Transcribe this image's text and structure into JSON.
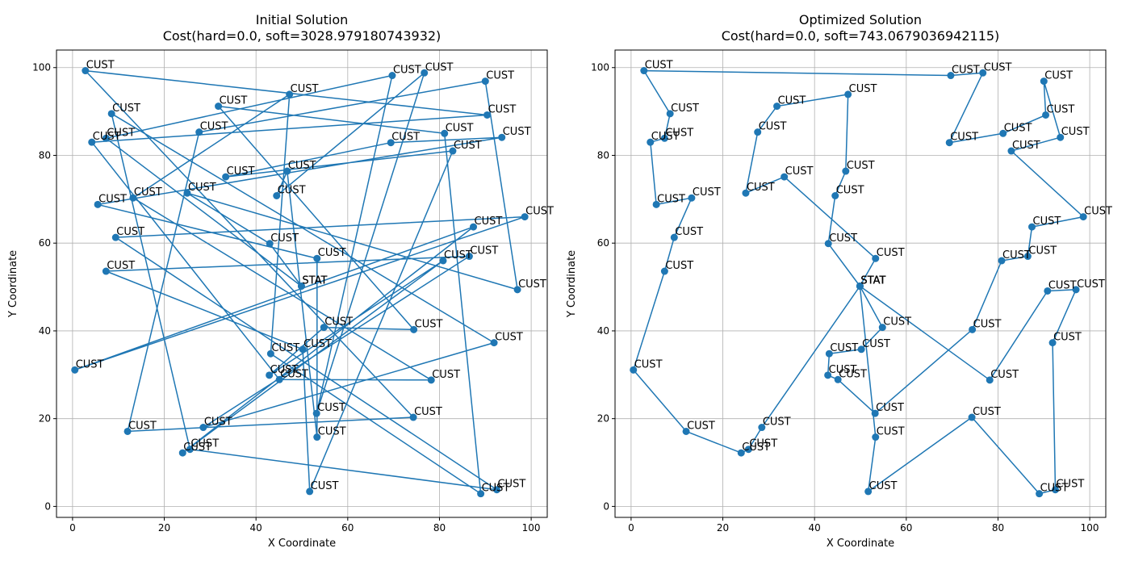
{
  "figure": {
    "background": "#ffffff"
  },
  "chart_data": [
    {
      "type": "line",
      "title": "Initial Solution",
      "subtitle": "Cost(hard=0.0, soft=3028.979180743932)",
      "xlabel": "X Coordinate",
      "ylabel": "Y Coordinate",
      "xlim": [
        -3.5,
        103.5
      ],
      "ylim": [
        -2.5,
        104
      ],
      "xticks": [
        0,
        20,
        40,
        60,
        80,
        100
      ],
      "yticks": [
        0,
        20,
        40,
        60,
        80,
        100
      ],
      "grid": true,
      "color": "#1f77b4",
      "series": [
        {
          "points": [
            {
              "x": 49.9,
              "y": 50.2,
              "label": "STAT"
            },
            {
              "x": 43.0,
              "y": 59.9,
              "label": "CUST"
            },
            {
              "x": 25.0,
              "y": 71.4,
              "label": "CUST"
            },
            {
              "x": 97.0,
              "y": 49.4,
              "label": "CUST"
            },
            {
              "x": 90.0,
              "y": 96.9,
              "label": "CUST"
            },
            {
              "x": 27.6,
              "y": 85.3,
              "label": "CUST"
            },
            {
              "x": 12.0,
              "y": 17.1,
              "label": "CUST"
            },
            {
              "x": 74.3,
              "y": 20.3,
              "label": "CUST"
            },
            {
              "x": 2.8,
              "y": 99.3,
              "label": "CUST"
            },
            {
              "x": 90.4,
              "y": 89.2,
              "label": "CUST"
            },
            {
              "x": 4.2,
              "y": 83.0,
              "label": "CUST"
            },
            {
              "x": 45.1,
              "y": 28.9,
              "label": "CUST"
            },
            {
              "x": 78.2,
              "y": 28.8,
              "label": "CUST"
            },
            {
              "x": 13.2,
              "y": 70.3,
              "label": "CUST"
            },
            {
              "x": 47.3,
              "y": 93.9,
              "label": "CUST"
            },
            {
              "x": 43.2,
              "y": 34.8,
              "label": "CUST"
            },
            {
              "x": 89.0,
              "y": 2.9,
              "label": "CUST"
            },
            {
              "x": 81.1,
              "y": 85.0,
              "label": "CUST"
            },
            {
              "x": 31.8,
              "y": 91.2,
              "label": "CUST"
            },
            {
              "x": 74.4,
              "y": 40.3,
              "label": "CUST"
            },
            {
              "x": 54.8,
              "y": 40.8,
              "label": "CUST"
            },
            {
              "x": 42.9,
              "y": 29.9,
              "label": "CUST"
            },
            {
              "x": 80.8,
              "y": 56.0,
              "label": "CUST"
            },
            {
              "x": 24.0,
              "y": 12.2,
              "label": "CUST"
            },
            {
              "x": 87.4,
              "y": 63.7,
              "label": "CUST"
            },
            {
              "x": 0.5,
              "y": 31.1,
              "label": "CUST"
            },
            {
              "x": 98.6,
              "y": 66.0,
              "label": "CUST"
            },
            {
              "x": 9.4,
              "y": 61.3,
              "label": "CUST"
            },
            {
              "x": 92.5,
              "y": 3.8,
              "label": "CUST"
            },
            {
              "x": 25.6,
              "y": 13.0,
              "label": "CUST"
            },
            {
              "x": 8.5,
              "y": 89.5,
              "label": "CUST"
            },
            {
              "x": 91.9,
              "y": 37.3,
              "label": "CUST"
            },
            {
              "x": 28.5,
              "y": 18.0,
              "label": "CUST"
            },
            {
              "x": 86.5,
              "y": 57.0,
              "label": "CUST"
            },
            {
              "x": 7.3,
              "y": 53.6,
              "label": "CUST"
            },
            {
              "x": 50.2,
              "y": 35.8,
              "label": "CUST"
            },
            {
              "x": 51.7,
              "y": 3.4,
              "label": "CUST"
            },
            {
              "x": 82.9,
              "y": 81.0,
              "label": "CUST"
            },
            {
              "x": 33.4,
              "y": 75.1,
              "label": "CUST"
            },
            {
              "x": 69.4,
              "y": 82.9,
              "label": "CUST"
            },
            {
              "x": 93.6,
              "y": 84.1,
              "label": "CUST"
            },
            {
              "x": 5.5,
              "y": 68.8,
              "label": "CUST"
            },
            {
              "x": 53.3,
              "y": 56.5,
              "label": "CUST"
            },
            {
              "x": 53.3,
              "y": 15.8,
              "label": "CUST"
            },
            {
              "x": 46.8,
              "y": 76.4,
              "label": "CUST"
            },
            {
              "x": 44.5,
              "y": 70.8,
              "label": "CUST"
            },
            {
              "x": 76.7,
              "y": 98.8,
              "label": "CUST"
            },
            {
              "x": 53.2,
              "y": 21.2,
              "label": "CUST"
            },
            {
              "x": 69.7,
              "y": 98.2,
              "label": "CUST"
            },
            {
              "x": 7.3,
              "y": 83.9,
              "label": "CUST"
            },
            {
              "x": 49.9,
              "y": 50.2,
              "label": "STAT"
            }
          ]
        }
      ]
    },
    {
      "type": "line",
      "title": "Optimized Solution",
      "subtitle": "Cost(hard=0.0, soft=743.0679036942115)",
      "xlabel": "X Coordinate",
      "ylabel": "Y Coordinate",
      "xlim": [
        -3.5,
        103.5
      ],
      "ylim": [
        -2.5,
        104
      ],
      "xticks": [
        0,
        20,
        40,
        60,
        80,
        100
      ],
      "yticks": [
        0,
        20,
        40,
        60,
        80,
        100
      ],
      "grid": true,
      "color": "#1f77b4",
      "series": [
        {
          "points": [
            {
              "x": 49.9,
              "y": 50.2,
              "label": "STAT"
            },
            {
              "x": 28.5,
              "y": 18.0,
              "label": "CUST"
            },
            {
              "x": 25.6,
              "y": 13.0,
              "label": "CUST"
            },
            {
              "x": 24.0,
              "y": 12.2,
              "label": "CUST"
            },
            {
              "x": 12.0,
              "y": 17.1,
              "label": "CUST"
            },
            {
              "x": 0.5,
              "y": 31.1,
              "label": "CUST"
            },
            {
              "x": 7.3,
              "y": 53.6,
              "label": "CUST"
            },
            {
              "x": 9.4,
              "y": 61.3,
              "label": "CUST"
            },
            {
              "x": 13.2,
              "y": 70.3,
              "label": "CUST"
            },
            {
              "x": 5.5,
              "y": 68.8,
              "label": "CUST"
            },
            {
              "x": 4.2,
              "y": 83.0,
              "label": "CUST"
            },
            {
              "x": 7.3,
              "y": 83.9,
              "label": "CUST"
            },
            {
              "x": 8.5,
              "y": 89.5,
              "label": "CUST"
            },
            {
              "x": 2.8,
              "y": 99.3,
              "label": "CUST"
            },
            {
              "x": 69.7,
              "y": 98.2,
              "label": "CUST"
            },
            {
              "x": 76.7,
              "y": 98.8,
              "label": "CUST"
            },
            {
              "x": 69.4,
              "y": 82.9,
              "label": "CUST"
            },
            {
              "x": 81.1,
              "y": 85.0,
              "label": "CUST"
            },
            {
              "x": 90.4,
              "y": 89.2,
              "label": "CUST"
            },
            {
              "x": 90.0,
              "y": 96.9,
              "label": "CUST"
            },
            {
              "x": 93.6,
              "y": 84.1,
              "label": "CUST"
            },
            {
              "x": 82.9,
              "y": 81.0,
              "label": "CUST"
            },
            {
              "x": 98.6,
              "y": 66.0,
              "label": "CUST"
            },
            {
              "x": 87.4,
              "y": 63.7,
              "label": "CUST"
            },
            {
              "x": 86.5,
              "y": 57.0,
              "label": "CUST"
            },
            {
              "x": 80.8,
              "y": 56.0,
              "label": "CUST"
            },
            {
              "x": 74.4,
              "y": 40.3,
              "label": "CUST"
            },
            {
              "x": 53.2,
              "y": 21.2,
              "label": "CUST"
            },
            {
              "x": 45.1,
              "y": 28.9,
              "label": "CUST"
            },
            {
              "x": 42.9,
              "y": 29.9,
              "label": "CUST"
            },
            {
              "x": 43.2,
              "y": 34.8,
              "label": "CUST"
            },
            {
              "x": 50.2,
              "y": 35.8,
              "label": "CUST"
            },
            {
              "x": 54.8,
              "y": 40.8,
              "label": "CUST"
            },
            {
              "x": 49.9,
              "y": 50.2,
              "label": "STAT"
            },
            {
              "x": 53.3,
              "y": 56.5,
              "label": "CUST"
            },
            {
              "x": 33.4,
              "y": 75.1,
              "label": "CUST"
            },
            {
              "x": 25.0,
              "y": 71.4,
              "label": "CUST"
            },
            {
              "x": 27.6,
              "y": 85.3,
              "label": "CUST"
            },
            {
              "x": 31.8,
              "y": 91.2,
              "label": "CUST"
            },
            {
              "x": 47.3,
              "y": 93.9,
              "label": "CUST"
            },
            {
              "x": 46.8,
              "y": 76.4,
              "label": "CUST"
            },
            {
              "x": 44.5,
              "y": 70.8,
              "label": "CUST"
            },
            {
              "x": 43.0,
              "y": 59.9,
              "label": "CUST"
            },
            {
              "x": 49.9,
              "y": 50.2,
              "label": "STAT"
            },
            {
              "x": 53.3,
              "y": 15.8,
              "label": "CUST"
            },
            {
              "x": 51.7,
              "y": 3.4,
              "label": "CUST"
            },
            {
              "x": 74.3,
              "y": 20.3,
              "label": "CUST"
            },
            {
              "x": 89.0,
              "y": 2.9,
              "label": "CUST"
            },
            {
              "x": 92.5,
              "y": 3.8,
              "label": "CUST"
            },
            {
              "x": 91.9,
              "y": 37.3,
              "label": "CUST"
            },
            {
              "x": 97.0,
              "y": 49.4,
              "label": "CUST"
            },
            {
              "x": 90.8,
              "y": 49.1,
              "label": "CUST"
            },
            {
              "x": 78.2,
              "y": 28.8,
              "label": "CUST"
            },
            {
              "x": 49.9,
              "y": 50.2,
              "label": "STAT"
            }
          ]
        }
      ]
    }
  ]
}
